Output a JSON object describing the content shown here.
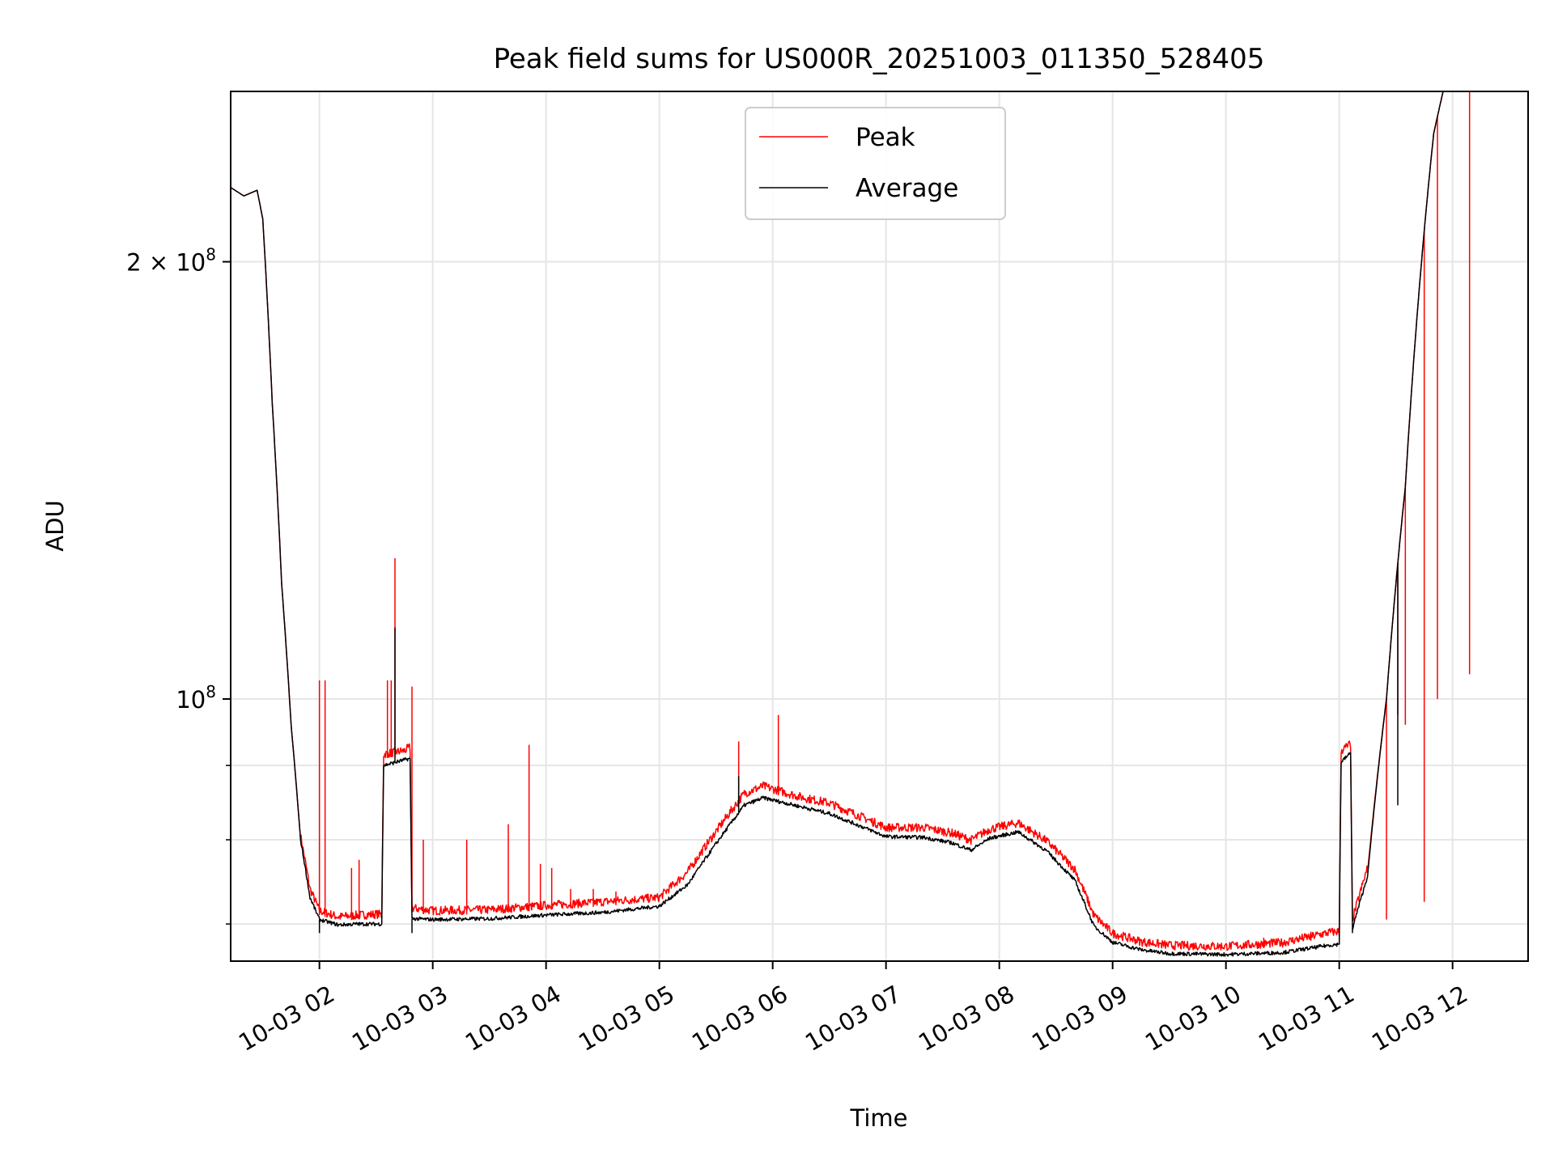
{
  "chart_data": {
    "type": "line",
    "title": "Peak field sums for US000R_20251003_011350_528405",
    "xlabel": "Time",
    "ylabel": "ADU",
    "y_scale": "log",
    "grid": true,
    "legend_position": "upper-center",
    "x_date": "2025-10-03",
    "xlim": [
      "01:13",
      "12:40"
    ],
    "ylim": [
      66000000,
      262000000
    ],
    "x_ticks": [
      {
        "time": "02:00",
        "label": "10-03 02"
      },
      {
        "time": "03:00",
        "label": "10-03 03"
      },
      {
        "time": "04:00",
        "label": "10-03 04"
      },
      {
        "time": "05:00",
        "label": "10-03 05"
      },
      {
        "time": "06:00",
        "label": "10-03 06"
      },
      {
        "time": "07:00",
        "label": "10-03 07"
      },
      {
        "time": "08:00",
        "label": "10-03 08"
      },
      {
        "time": "09:00",
        "label": "10-03 09"
      },
      {
        "time": "10:00",
        "label": "10-03 10"
      },
      {
        "time": "11:00",
        "label": "10-03 11"
      },
      {
        "time": "12:00",
        "label": "10-03 12"
      }
    ],
    "y_tick_labels": [
      {
        "value": 200000000,
        "base": "2 × 10",
        "exp": "8"
      },
      {
        "value": 100000000,
        "base": "10",
        "exp": "8"
      }
    ],
    "y_minor_ticks": [
      70000000,
      80000000,
      90000000
    ],
    "series": [
      {
        "name": "Peak",
        "color": "#ff0000",
        "points": [
          [
            "01:13",
            225000000
          ],
          [
            "01:20",
            222000000
          ],
          [
            "01:27",
            224000000
          ],
          [
            "01:30",
            214000000
          ],
          [
            "01:35",
            160000000
          ],
          [
            "01:40",
            120000000
          ],
          [
            "01:45",
            96000000
          ],
          [
            "01:50",
            80000000
          ],
          [
            "01:55",
            73500000
          ],
          [
            "02:00",
            71000000
          ],
          [
            "02:10",
            70300000
          ],
          [
            "02:20",
            70500000
          ],
          [
            "02:30",
            70600000
          ],
          [
            "02:33",
            70600000
          ],
          [
            "02:34",
            91000000
          ],
          [
            "02:45",
            91500000
          ],
          [
            "02:48",
            92000000
          ],
          [
            "02:49",
            71300000
          ],
          [
            "03:00",
            71000000
          ],
          [
            "03:30",
            71100000
          ],
          [
            "04:00",
            71600000
          ],
          [
            "04:30",
            72000000
          ],
          [
            "05:00",
            72500000
          ],
          [
            "05:15",
            75500000
          ],
          [
            "05:30",
            80500000
          ],
          [
            "05:45",
            85500000
          ],
          [
            "05:55",
            86500000
          ],
          [
            "06:15",
            85000000
          ],
          [
            "06:30",
            84200000
          ],
          [
            "06:45",
            82600000
          ],
          [
            "07:00",
            81000000
          ],
          [
            "07:20",
            81000000
          ],
          [
            "07:35",
            80300000
          ],
          [
            "07:45",
            79400000
          ],
          [
            "07:55",
            80800000
          ],
          [
            "08:10",
            81600000
          ],
          [
            "08:25",
            79300000
          ],
          [
            "08:40",
            75800000
          ],
          [
            "08:50",
            70500000
          ],
          [
            "09:00",
            68500000
          ],
          [
            "09:15",
            67600000
          ],
          [
            "09:30",
            67200000
          ],
          [
            "10:00",
            67100000
          ],
          [
            "10:30",
            67500000
          ],
          [
            "10:55",
            68600000
          ],
          [
            "11:00",
            68700000
          ],
          [
            "11:01",
            91500000
          ],
          [
            "11:06",
            92500000
          ],
          [
            "11:07",
            70000000
          ],
          [
            "11:15",
            76000000
          ],
          [
            "11:25",
            100000000
          ],
          [
            "11:35",
            140000000
          ],
          [
            "11:45",
            210000000
          ],
          [
            "11:50",
            245000000
          ],
          [
            "11:55",
            262000000
          ],
          [
            "12:40",
            262000000
          ]
        ],
        "spikes": [
          [
            "02:00",
            103000000
          ],
          [
            "02:03",
            103000000
          ],
          [
            "02:17",
            76500000
          ],
          [
            "02:21",
            77500000
          ],
          [
            "02:36",
            103000000
          ],
          [
            "02:38",
            103000000
          ],
          [
            "02:40",
            125000000
          ],
          [
            "02:49",
            102000000
          ],
          [
            "02:55",
            80000000
          ],
          [
            "03:18",
            80000000
          ],
          [
            "03:40",
            82000000
          ],
          [
            "03:51",
            93000000
          ],
          [
            "03:57",
            77000000
          ],
          [
            "04:03",
            76500000
          ],
          [
            "04:13",
            74000000
          ],
          [
            "04:25",
            74000000
          ],
          [
            "04:37",
            73700000
          ],
          [
            "05:42",
            93500000
          ],
          [
            "06:03",
            97500000
          ],
          [
            "10:20",
            68500000
          ],
          [
            "10:45",
            68800000
          ],
          [
            "11:25",
            70500000
          ],
          [
            "11:31",
            97500000
          ],
          [
            "11:35",
            96000000
          ],
          [
            "11:45",
            72500000
          ],
          [
            "11:52",
            100000000
          ],
          [
            "12:09",
            104000000
          ]
        ]
      },
      {
        "name": "Average",
        "color": "#000000",
        "points": [
          [
            "01:13",
            225000000
          ],
          [
            "01:20",
            222000000
          ],
          [
            "01:27",
            224000000
          ],
          [
            "01:30",
            214000000
          ],
          [
            "01:35",
            160000000
          ],
          [
            "01:40",
            120000000
          ],
          [
            "01:45",
            96000000
          ],
          [
            "01:50",
            80000000
          ],
          [
            "01:55",
            73000000
          ],
          [
            "02:00",
            70500000
          ],
          [
            "02:10",
            69900000
          ],
          [
            "02:20",
            70000000
          ],
          [
            "02:30",
            70000000
          ],
          [
            "02:33",
            70000000
          ],
          [
            "02:34",
            90000000
          ],
          [
            "02:45",
            90800000
          ],
          [
            "02:48",
            91000000
          ],
          [
            "02:49",
            70600000
          ],
          [
            "03:00",
            70500000
          ],
          [
            "03:30",
            70600000
          ],
          [
            "04:00",
            71000000
          ],
          [
            "04:30",
            71300000
          ],
          [
            "05:00",
            72000000
          ],
          [
            "05:15",
            74500000
          ],
          [
            "05:30",
            79500000
          ],
          [
            "05:45",
            84500000
          ],
          [
            "05:55",
            85500000
          ],
          [
            "06:15",
            84300000
          ],
          [
            "06:30",
            83400000
          ],
          [
            "06:45",
            81900000
          ],
          [
            "07:00",
            80400000
          ],
          [
            "07:20",
            80300000
          ],
          [
            "07:35",
            79600000
          ],
          [
            "07:45",
            78700000
          ],
          [
            "07:55",
            80200000
          ],
          [
            "08:10",
            81000000
          ],
          [
            "08:25",
            78600000
          ],
          [
            "08:40",
            75000000
          ],
          [
            "08:50",
            69800000
          ],
          [
            "09:00",
            68000000
          ],
          [
            "09:15",
            67200000
          ],
          [
            "09:30",
            66800000
          ],
          [
            "10:00",
            66700000
          ],
          [
            "10:30",
            66900000
          ],
          [
            "10:55",
            67700000
          ],
          [
            "11:00",
            67800000
          ],
          [
            "11:01",
            90500000
          ],
          [
            "11:06",
            91800000
          ],
          [
            "11:07",
            69500000
          ],
          [
            "11:15",
            75500000
          ],
          [
            "11:25",
            100000000
          ],
          [
            "11:35",
            140000000
          ],
          [
            "11:45",
            210000000
          ],
          [
            "11:50",
            245000000
          ],
          [
            "11:55",
            262000000
          ],
          [
            "12:40",
            262000000
          ]
        ],
        "spikes": [
          [
            "02:40",
            112000000
          ],
          [
            "05:42",
            88500000
          ],
          [
            "11:31",
            84500000
          ],
          [
            "02:00",
            69000000
          ],
          [
            "02:49",
            69000000
          ],
          [
            "11:07",
            69000000
          ]
        ]
      }
    ]
  }
}
